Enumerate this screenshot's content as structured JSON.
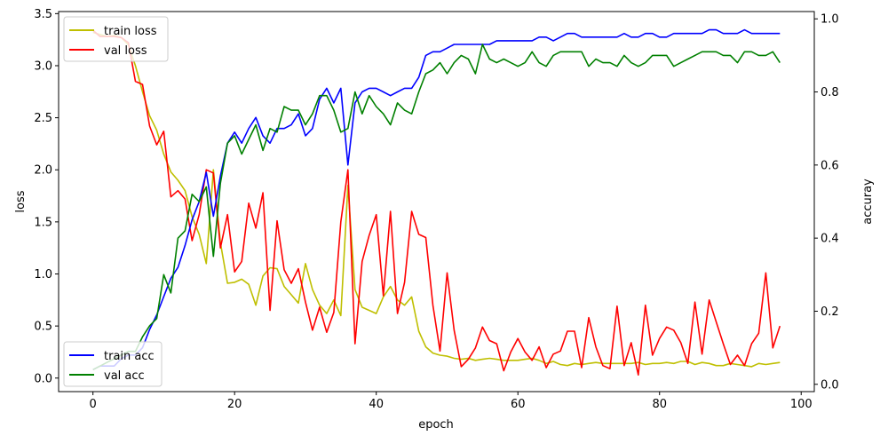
{
  "chart_data": {
    "type": "line",
    "xlabel": "epoch",
    "ylabel_left": "loss",
    "ylabel_right": "accuray",
    "xlim": [
      -4.85,
      101.85
    ],
    "ylim_left": [
      -0.13,
      3.52
    ],
    "ylim_right": [
      -0.02,
      1.02
    ],
    "x_ticks": [
      0,
      20,
      40,
      60,
      80,
      100
    ],
    "y_ticks_left": [
      0.0,
      0.5,
      1.0,
      1.5,
      2.0,
      2.5,
      3.0,
      3.5
    ],
    "y_ticks_right": [
      0.0,
      0.2,
      0.4,
      0.6,
      0.8,
      1.0
    ],
    "legend_left_placement": "top-left",
    "legend_right_placement": "bottom-left",
    "grid": false,
    "x": [
      0,
      1,
      2,
      3,
      4,
      5,
      6,
      7,
      8,
      9,
      10,
      11,
      12,
      13,
      14,
      15,
      16,
      17,
      18,
      19,
      20,
      21,
      22,
      23,
      24,
      25,
      26,
      27,
      28,
      29,
      30,
      31,
      32,
      33,
      34,
      35,
      36,
      37,
      38,
      39,
      40,
      41,
      42,
      43,
      44,
      45,
      46,
      47,
      48,
      49,
      50,
      51,
      52,
      53,
      54,
      55,
      56,
      57,
      58,
      59,
      60,
      61,
      62,
      63,
      64,
      65,
      66,
      67,
      68,
      69,
      70,
      71,
      72,
      73,
      74,
      75,
      76,
      77,
      78,
      79,
      80,
      81,
      82,
      83,
      84,
      85,
      86,
      87,
      88,
      89,
      90,
      91,
      92,
      93,
      94,
      95,
      96,
      97
    ],
    "series_left": [
      {
        "name": "train loss",
        "color": "#bfbf00",
        "values": [
          3.32,
          3.3,
          3.28,
          3.29,
          3.27,
          3.2,
          3.0,
          2.75,
          2.52,
          2.38,
          2.15,
          1.98,
          1.9,
          1.8,
          1.55,
          1.38,
          1.1,
          2.0,
          1.3,
          0.91,
          0.92,
          0.95,
          0.9,
          0.7,
          0.98,
          1.06,
          1.05,
          0.88,
          0.8,
          0.72,
          1.1,
          0.85,
          0.7,
          0.62,
          0.75,
          0.6,
          1.85,
          0.85,
          0.68,
          0.65,
          0.62,
          0.78,
          0.88,
          0.75,
          0.7,
          0.78,
          0.45,
          0.3,
          0.24,
          0.22,
          0.21,
          0.19,
          0.18,
          0.19,
          0.17,
          0.18,
          0.19,
          0.18,
          0.17,
          0.17,
          0.17,
          0.18,
          0.19,
          0.17,
          0.14,
          0.16,
          0.13,
          0.12,
          0.14,
          0.13,
          0.14,
          0.15,
          0.14,
          0.14,
          0.14,
          0.14,
          0.14,
          0.15,
          0.13,
          0.14,
          0.14,
          0.15,
          0.14,
          0.16,
          0.16,
          0.13,
          0.15,
          0.14,
          0.12,
          0.12,
          0.14,
          0.13,
          0.12,
          0.11,
          0.14,
          0.13,
          0.14,
          0.15
        ]
      },
      {
        "name": "val loss",
        "color": "#ff0000",
        "values": [
          3.34,
          3.28,
          3.28,
          3.28,
          3.27,
          3.22,
          2.85,
          2.82,
          2.42,
          2.24,
          2.37,
          1.74,
          1.8,
          1.72,
          1.32,
          1.57,
          2.0,
          1.97,
          1.25,
          1.57,
          1.02,
          1.12,
          1.68,
          1.44,
          1.78,
          0.65,
          1.51,
          1.04,
          0.91,
          1.05,
          0.73,
          0.46,
          0.68,
          0.44,
          0.63,
          1.5,
          2.0,
          0.33,
          1.12,
          1.37,
          1.57,
          0.79,
          1.6,
          0.62,
          0.92,
          1.6,
          1.38,
          1.35,
          0.7,
          0.26,
          1.01,
          0.46,
          0.11,
          0.18,
          0.29,
          0.49,
          0.36,
          0.33,
          0.07,
          0.25,
          0.38,
          0.25,
          0.17,
          0.3,
          0.1,
          0.23,
          0.26,
          0.45,
          0.45,
          0.1,
          0.58,
          0.3,
          0.12,
          0.09,
          0.69,
          0.12,
          0.34,
          0.03,
          0.7,
          0.22,
          0.38,
          0.49,
          0.46,
          0.34,
          0.14,
          0.73,
          0.23,
          0.75,
          0.54,
          0.33,
          0.13,
          0.22,
          0.12,
          0.33,
          0.43,
          1.01,
          0.29,
          0.5
        ]
      }
    ],
    "series_right": [
      {
        "name": "train acc",
        "color": "#0000ff",
        "values": [
          0.04,
          0.05,
          0.05,
          0.05,
          0.07,
          0.08,
          0.08,
          0.1,
          0.15,
          0.19,
          0.24,
          0.29,
          0.32,
          0.38,
          0.45,
          0.5,
          0.58,
          0.46,
          0.57,
          0.66,
          0.69,
          0.66,
          0.7,
          0.73,
          0.68,
          0.66,
          0.7,
          0.7,
          0.71,
          0.74,
          0.68,
          0.7,
          0.78,
          0.81,
          0.77,
          0.81,
          0.6,
          0.77,
          0.8,
          0.81,
          0.81,
          0.8,
          0.79,
          0.8,
          0.81,
          0.81,
          0.84,
          0.9,
          0.91,
          0.91,
          0.92,
          0.93,
          0.93,
          0.93,
          0.93,
          0.93,
          0.93,
          0.94,
          0.94,
          0.94,
          0.94,
          0.94,
          0.94,
          0.95,
          0.95,
          0.94,
          0.95,
          0.96,
          0.96,
          0.95,
          0.95,
          0.95,
          0.95,
          0.95,
          0.95,
          0.96,
          0.95,
          0.95,
          0.96,
          0.96,
          0.95,
          0.95,
          0.96,
          0.96,
          0.96,
          0.96,
          0.96,
          0.97,
          0.97,
          0.96,
          0.96,
          0.96,
          0.97,
          0.96,
          0.96,
          0.96,
          0.96,
          0.96
        ]
      },
      {
        "name": "val acc",
        "color": "#008000",
        "values": [
          0.04,
          0.05,
          0.06,
          0.07,
          0.08,
          0.09,
          0.09,
          0.13,
          0.16,
          0.18,
          0.3,
          0.25,
          0.4,
          0.42,
          0.52,
          0.5,
          0.54,
          0.35,
          0.55,
          0.66,
          0.68,
          0.63,
          0.67,
          0.71,
          0.64,
          0.7,
          0.69,
          0.76,
          0.75,
          0.75,
          0.71,
          0.74,
          0.79,
          0.79,
          0.75,
          0.69,
          0.7,
          0.8,
          0.74,
          0.79,
          0.76,
          0.74,
          0.71,
          0.77,
          0.75,
          0.74,
          0.8,
          0.85,
          0.86,
          0.88,
          0.85,
          0.88,
          0.9,
          0.89,
          0.85,
          0.93,
          0.89,
          0.88,
          0.89,
          0.88,
          0.87,
          0.88,
          0.91,
          0.88,
          0.87,
          0.9,
          0.91,
          0.91,
          0.91,
          0.91,
          0.87,
          0.89,
          0.88,
          0.88,
          0.87,
          0.9,
          0.88,
          0.87,
          0.88,
          0.9,
          0.9,
          0.9,
          0.87,
          0.88,
          0.89,
          0.9,
          0.91,
          0.91,
          0.91,
          0.9,
          0.9,
          0.88,
          0.91,
          0.91,
          0.9,
          0.9,
          0.91,
          0.88
        ]
      }
    ]
  }
}
